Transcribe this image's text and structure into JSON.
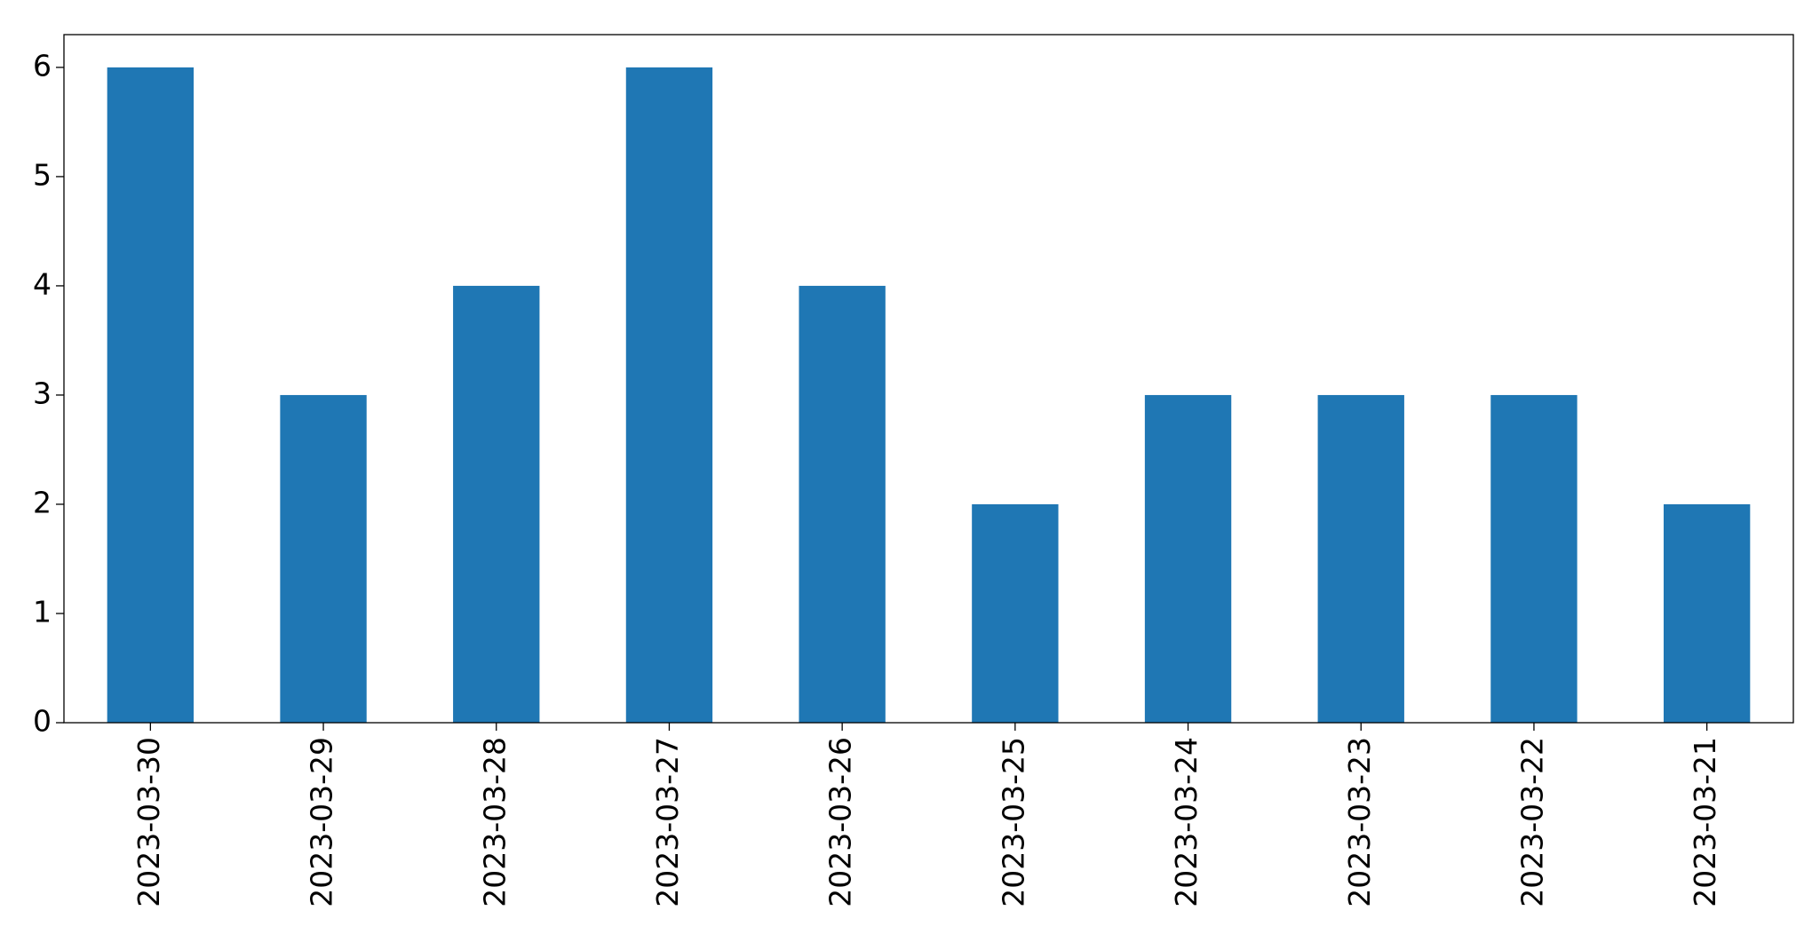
{
  "chart_data": {
    "type": "bar",
    "categories": [
      "2023-03-30",
      "2023-03-29",
      "2023-03-28",
      "2023-03-27",
      "2023-03-26",
      "2023-03-25",
      "2023-03-24",
      "2023-03-23",
      "2023-03-22",
      "2023-03-21"
    ],
    "values": [
      6,
      3,
      4,
      6,
      4,
      2,
      3,
      3,
      3,
      2
    ],
    "color": "#1f77b4",
    "ylim": [
      0,
      6.3
    ],
    "yticks": [
      0,
      1,
      2,
      3,
      4,
      5,
      6
    ],
    "grid": false
  }
}
